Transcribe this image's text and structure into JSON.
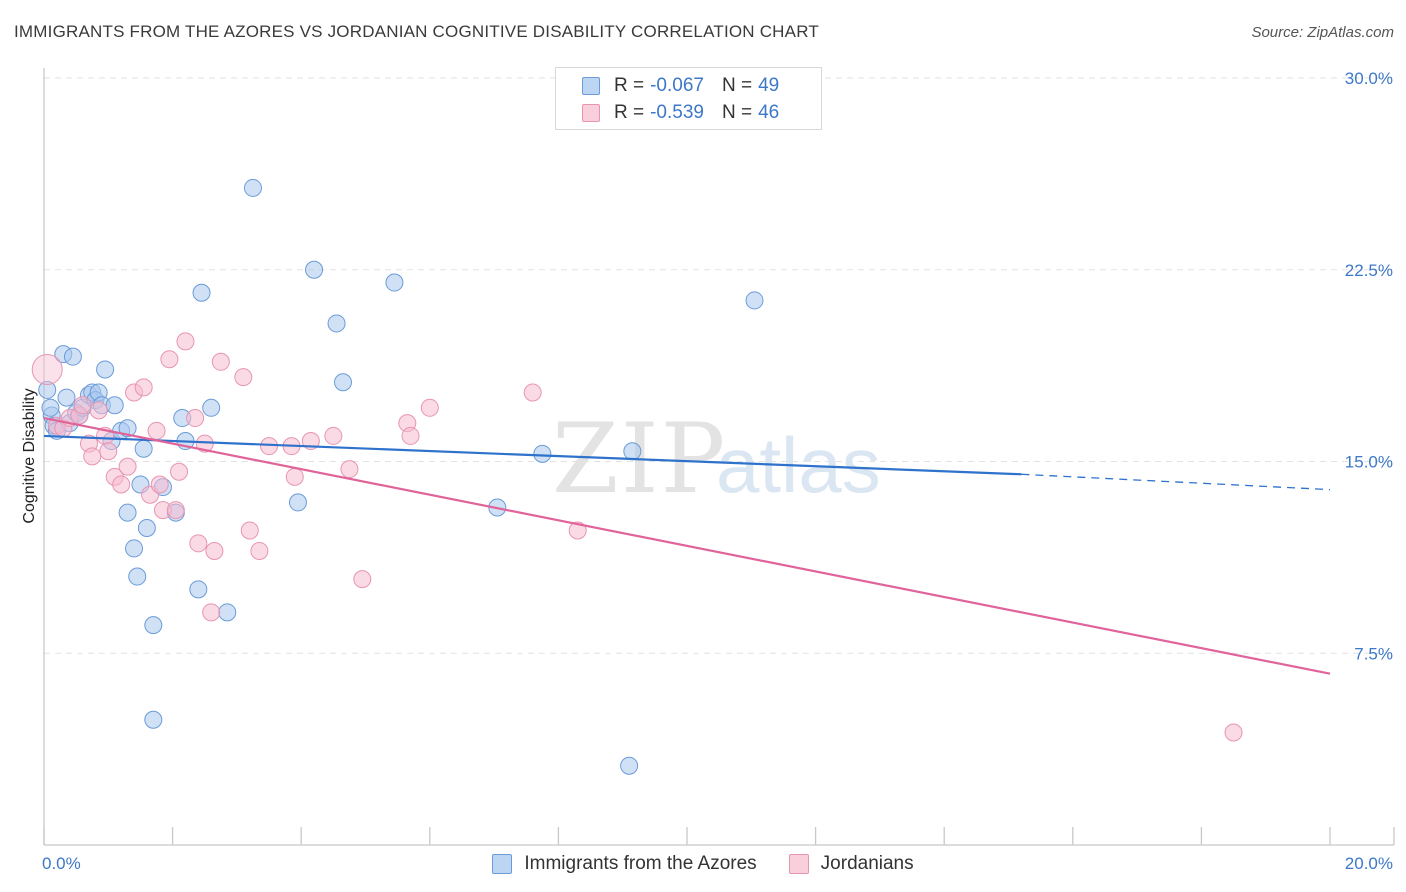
{
  "chart_data": {
    "type": "scatter",
    "title": "IMMIGRANTS FROM THE AZORES VS JORDANIAN COGNITIVE DISABILITY CORRELATION CHART",
    "source": "Source: ZipAtlas.com",
    "watermark_zip": "ZIP",
    "watermark_atlas": "atlas",
    "xlabel": "",
    "ylabel": "Cognitive Disability",
    "xlim": [
      0,
      20
    ],
    "ylim": [
      0,
      30
    ],
    "x_tick_labels": [
      {
        "value": 0,
        "label": "0.0%"
      },
      {
        "value": 20,
        "label": "20.0%"
      }
    ],
    "y_tick_labels": [
      {
        "value": 7.5,
        "label": "7.5%"
      },
      {
        "value": 15,
        "label": "15.0%"
      },
      {
        "value": 22.5,
        "label": "22.5%"
      },
      {
        "value": 30,
        "label": "30.0%"
      }
    ],
    "grid": true,
    "legend": {
      "placement": "top-center",
      "entries": [
        {
          "r_label": "R =",
          "r_value": "-0.067",
          "n_label": "N =",
          "n_value": "49"
        },
        {
          "r_label": "R =",
          "r_value": "-0.539",
          "n_label": "N =",
          "n_value": "46"
        }
      ]
    },
    "series": [
      {
        "name": "Immigrants from the Azores",
        "fill": "#aac8ef",
        "stroke": "#6b9bd8",
        "line_color": "#2e72cc",
        "trend": {
          "x0": 0,
          "y0": 16.0,
          "x1": 15.2,
          "y1": 14.5,
          "dash_x1": 20,
          "dash_y1": 13.9
        },
        "points": [
          [
            0.12,
            16.8
          ],
          [
            0.15,
            16.4
          ],
          [
            0.2,
            16.2
          ],
          [
            0.3,
            19.2
          ],
          [
            0.35,
            17.5
          ],
          [
            0.4,
            16.5
          ],
          [
            0.45,
            19.1
          ],
          [
            0.5,
            16.9
          ],
          [
            0.55,
            16.8
          ],
          [
            0.6,
            17.1
          ],
          [
            0.7,
            17.6
          ],
          [
            0.75,
            17.7
          ],
          [
            0.8,
            17.4
          ],
          [
            0.85,
            17.7
          ],
          [
            0.9,
            17.2
          ],
          [
            0.95,
            18.6
          ],
          [
            1.05,
            15.8
          ],
          [
            1.1,
            17.2
          ],
          [
            1.2,
            16.2
          ],
          [
            1.3,
            16.3
          ],
          [
            1.3,
            13.0
          ],
          [
            1.4,
            11.6
          ],
          [
            1.45,
            10.5
          ],
          [
            1.5,
            14.1
          ],
          [
            1.55,
            15.5
          ],
          [
            1.6,
            12.4
          ],
          [
            1.7,
            8.6
          ],
          [
            1.7,
            4.9
          ],
          [
            1.85,
            14.0
          ],
          [
            2.05,
            13.0
          ],
          [
            2.15,
            16.7
          ],
          [
            2.2,
            15.8
          ],
          [
            2.4,
            10.0
          ],
          [
            2.45,
            21.6
          ],
          [
            2.6,
            17.1
          ],
          [
            2.85,
            9.1
          ],
          [
            3.25,
            25.7
          ],
          [
            3.95,
            13.4
          ],
          [
            4.2,
            22.5
          ],
          [
            4.55,
            20.4
          ],
          [
            4.65,
            18.1
          ],
          [
            5.45,
            22.0
          ],
          [
            7.05,
            13.2
          ],
          [
            7.75,
            15.3
          ],
          [
            9.1,
            3.1
          ],
          [
            9.15,
            15.4
          ],
          [
            11.05,
            21.3
          ],
          [
            0.05,
            17.8
          ],
          [
            0.1,
            17.1
          ]
        ]
      },
      {
        "name": "Jordanians",
        "fill": "#f6bcd0",
        "stroke": "#e895b2",
        "line_color": "#e0649a",
        "trend": {
          "x0": 0,
          "y0": 16.7,
          "x1": 20,
          "y1": 6.7
        },
        "points": [
          [
            0.05,
            18.6
          ],
          [
            0.2,
            16.4
          ],
          [
            0.3,
            16.3
          ],
          [
            0.4,
            16.7
          ],
          [
            0.55,
            16.8
          ],
          [
            0.6,
            17.2
          ],
          [
            0.7,
            15.7
          ],
          [
            0.75,
            15.2
          ],
          [
            0.85,
            17.0
          ],
          [
            0.95,
            16.0
          ],
          [
            1.0,
            15.4
          ],
          [
            1.1,
            14.4
          ],
          [
            1.2,
            14.1
          ],
          [
            1.3,
            14.8
          ],
          [
            1.4,
            17.7
          ],
          [
            1.55,
            17.9
          ],
          [
            1.65,
            13.7
          ],
          [
            1.75,
            16.2
          ],
          [
            1.8,
            14.1
          ],
          [
            1.85,
            13.1
          ],
          [
            1.95,
            19.0
          ],
          [
            2.05,
            13.1
          ],
          [
            2.1,
            14.6
          ],
          [
            2.2,
            19.7
          ],
          [
            2.35,
            16.7
          ],
          [
            2.4,
            11.8
          ],
          [
            2.5,
            15.7
          ],
          [
            2.6,
            9.1
          ],
          [
            2.65,
            11.5
          ],
          [
            2.75,
            18.9
          ],
          [
            3.1,
            18.3
          ],
          [
            3.2,
            12.3
          ],
          [
            3.35,
            11.5
          ],
          [
            3.5,
            15.6
          ],
          [
            3.85,
            15.6
          ],
          [
            3.9,
            14.4
          ],
          [
            4.15,
            15.8
          ],
          [
            4.5,
            16.0
          ],
          [
            4.75,
            14.7
          ],
          [
            4.95,
            10.4
          ],
          [
            5.65,
            16.5
          ],
          [
            5.7,
            16.0
          ],
          [
            6.0,
            17.1
          ],
          [
            7.6,
            17.7
          ],
          [
            8.3,
            12.3
          ],
          [
            18.5,
            4.4
          ]
        ]
      }
    ]
  }
}
